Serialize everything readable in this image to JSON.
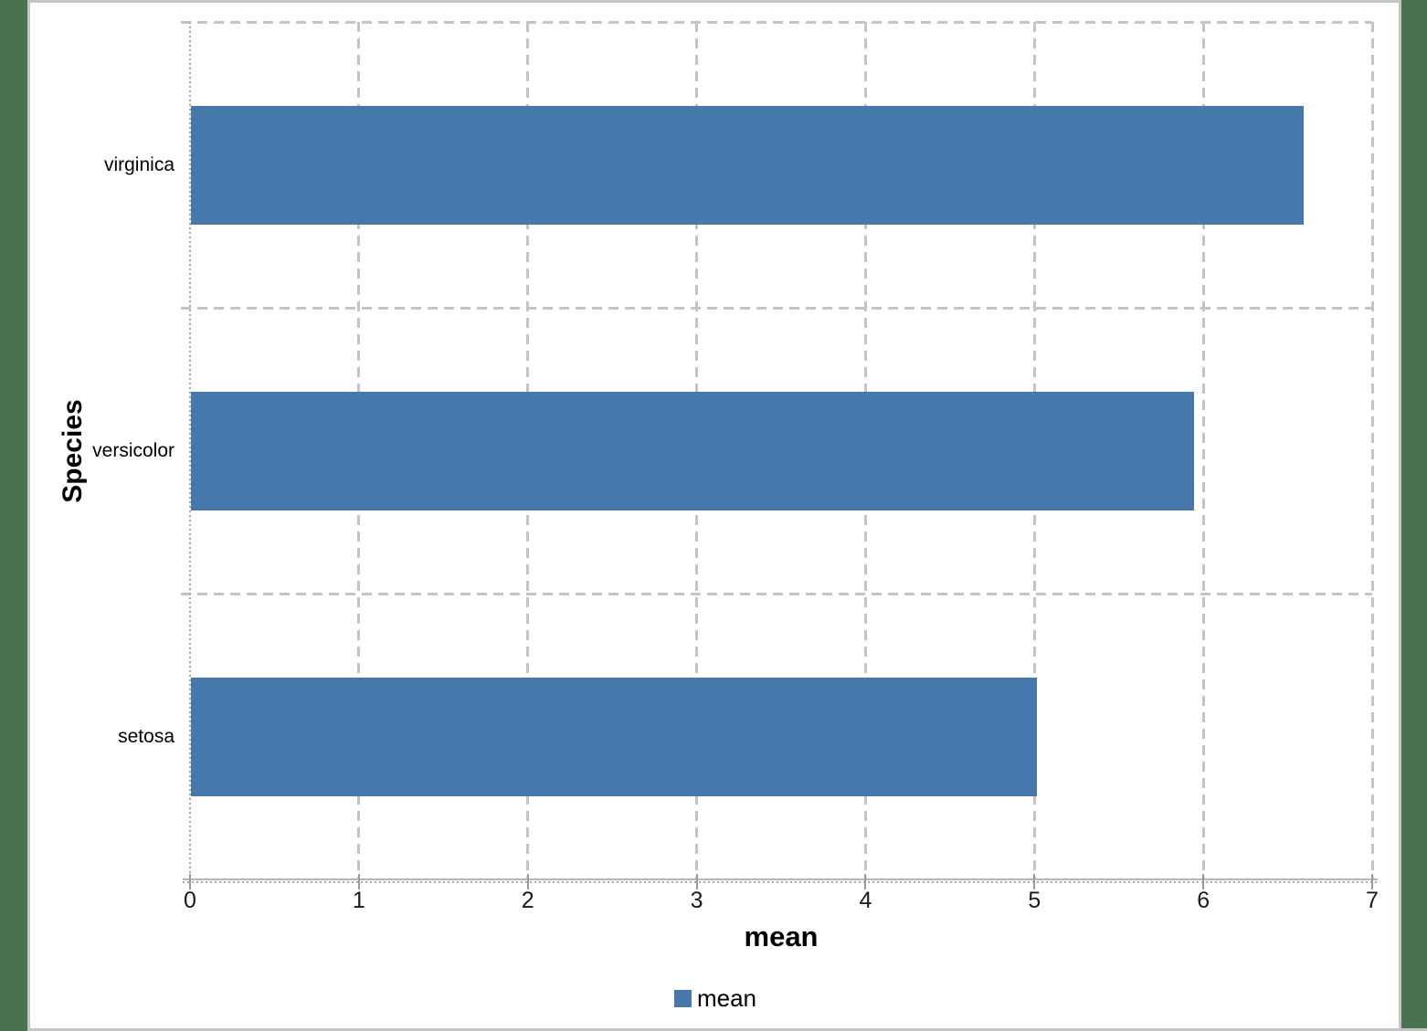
{
  "chart_data": {
    "type": "bar",
    "orientation": "horizontal",
    "title": "",
    "xlabel": "mean",
    "ylabel": "Species",
    "categories_top_to_bottom": [
      "virginica",
      "versicolor",
      "setosa"
    ],
    "values": [
      6.59,
      5.94,
      5.01
    ],
    "series_name": "mean",
    "xlim": [
      0,
      7
    ],
    "x_ticks": [
      "0",
      "1",
      "2",
      "3",
      "4",
      "5",
      "6",
      "7"
    ],
    "grid": "dashed",
    "legend": {
      "position": "bottom",
      "label": "mean"
    }
  },
  "colors": {
    "page_background": "#4a7250",
    "chart_background": "#ffffff",
    "chart_frame": "#c5c5c5",
    "gridline": "#c4c4c4",
    "axis_line": "#b6b6b6",
    "bar": "#4678ac",
    "text": "#000000"
  }
}
